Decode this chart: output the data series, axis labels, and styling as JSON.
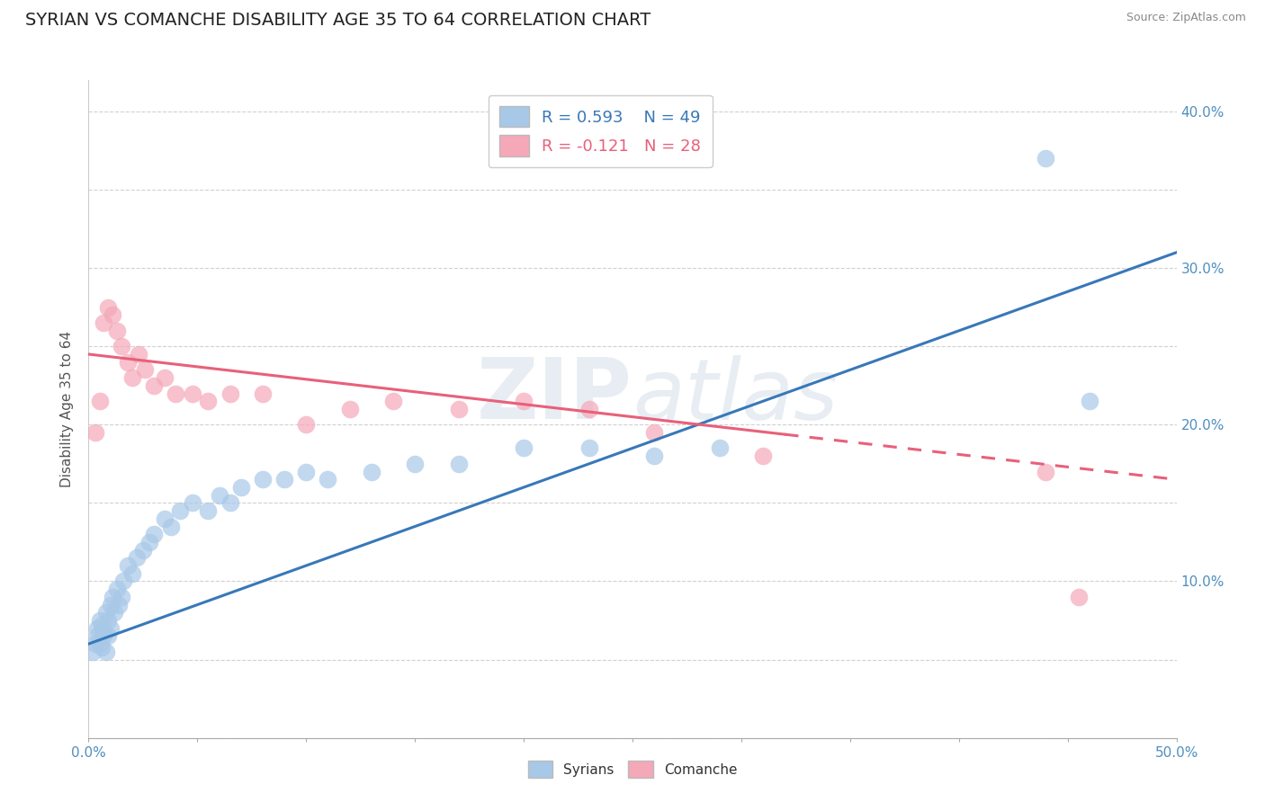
{
  "title": "SYRIAN VS COMANCHE DISABILITY AGE 35 TO 64 CORRELATION CHART",
  "source": "Source: ZipAtlas.com",
  "ylabel": "Disability Age 35 to 64",
  "xlim": [
    0.0,
    0.5
  ],
  "ylim": [
    0.0,
    0.42
  ],
  "xticks": [
    0.0,
    0.05,
    0.1,
    0.15,
    0.2,
    0.25,
    0.3,
    0.35,
    0.4,
    0.45,
    0.5
  ],
  "yticks": [
    0.0,
    0.05,
    0.1,
    0.15,
    0.2,
    0.25,
    0.3,
    0.35,
    0.4
  ],
  "syrians_R": 0.593,
  "syrians_N": 49,
  "comanche_R": -0.121,
  "comanche_N": 28,
  "syrian_color": "#a8c8e8",
  "comanche_color": "#f4a8b8",
  "syrian_line_color": "#3878b8",
  "comanche_line_color": "#e8607a",
  "watermark": "ZIPatlas",
  "syrians_x": [
    0.002,
    0.003,
    0.004,
    0.004,
    0.005,
    0.005,
    0.006,
    0.006,
    0.007,
    0.007,
    0.008,
    0.008,
    0.009,
    0.009,
    0.01,
    0.01,
    0.011,
    0.012,
    0.013,
    0.014,
    0.015,
    0.016,
    0.018,
    0.02,
    0.022,
    0.025,
    0.028,
    0.03,
    0.035,
    0.038,
    0.042,
    0.048,
    0.055,
    0.06,
    0.065,
    0.07,
    0.08,
    0.09,
    0.1,
    0.11,
    0.13,
    0.15,
    0.17,
    0.2,
    0.23,
    0.26,
    0.29,
    0.44,
    0.46
  ],
  "syrians_y": [
    0.055,
    0.06,
    0.065,
    0.07,
    0.06,
    0.075,
    0.058,
    0.072,
    0.065,
    0.068,
    0.055,
    0.08,
    0.065,
    0.075,
    0.07,
    0.085,
    0.09,
    0.08,
    0.095,
    0.085,
    0.09,
    0.1,
    0.11,
    0.105,
    0.115,
    0.12,
    0.125,
    0.13,
    0.14,
    0.135,
    0.145,
    0.15,
    0.145,
    0.155,
    0.15,
    0.16,
    0.165,
    0.165,
    0.17,
    0.165,
    0.17,
    0.175,
    0.175,
    0.185,
    0.185,
    0.18,
    0.185,
    0.37,
    0.215
  ],
  "comanche_x": [
    0.003,
    0.005,
    0.007,
    0.009,
    0.011,
    0.013,
    0.015,
    0.018,
    0.02,
    0.023,
    0.026,
    0.03,
    0.035,
    0.04,
    0.048,
    0.055,
    0.065,
    0.08,
    0.1,
    0.12,
    0.14,
    0.17,
    0.2,
    0.23,
    0.26,
    0.31,
    0.44,
    0.455
  ],
  "comanche_y": [
    0.195,
    0.215,
    0.265,
    0.275,
    0.27,
    0.26,
    0.25,
    0.24,
    0.23,
    0.245,
    0.235,
    0.225,
    0.23,
    0.22,
    0.22,
    0.215,
    0.22,
    0.22,
    0.2,
    0.21,
    0.215,
    0.21,
    0.215,
    0.21,
    0.195,
    0.18,
    0.17,
    0.09
  ],
  "syrian_trend_x": [
    0.0,
    0.5
  ],
  "syrian_trend_y": [
    0.06,
    0.31
  ],
  "comanche_trend_x": [
    0.0,
    0.5
  ],
  "comanche_trend_y": [
    0.245,
    0.165
  ],
  "comanche_trend_solid_end": 0.32,
  "background_color": "#ffffff",
  "grid_color": "#cccccc",
  "tick_color": "#4f8fbf",
  "title_fontsize": 14,
  "axis_label_fontsize": 11,
  "tick_fontsize": 11,
  "legend_fontsize": 13
}
